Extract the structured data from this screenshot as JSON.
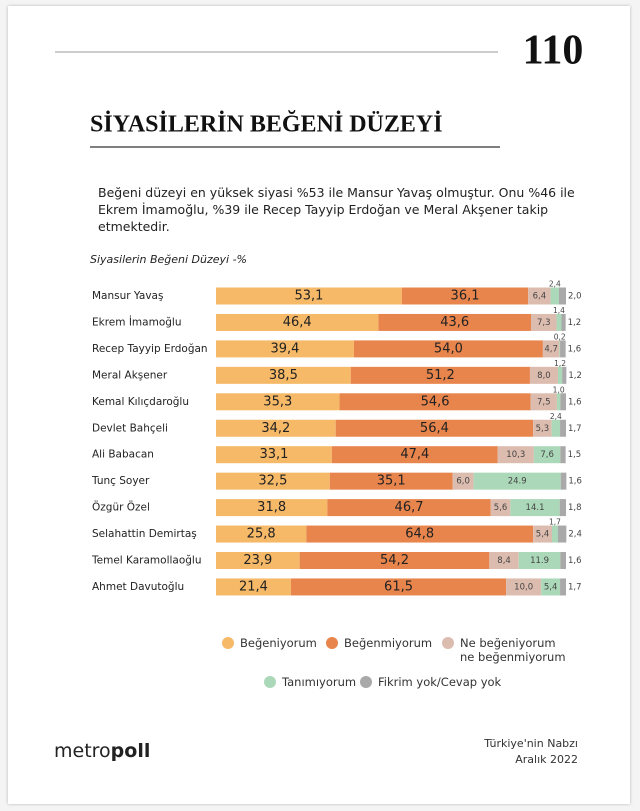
{
  "page_number": "110",
  "header": {
    "title": "SİYASİLERİN BEĞENİ DÜZEYİ"
  },
  "summary": "Beğeni düzeyi en yüksek siyasi %53 ile Mansur Yavaş olmuştur. Onu %46 ile Ekrem İmamoğlu, %39 ile Recep Tayyip Erdoğan ve Meral Akşener takip etmektedir.",
  "chart_data": {
    "type": "stacked-barh",
    "title": "Siyasilerin Beğeni Düzeyi -%",
    "categories": [
      "Mansur Yavaş",
      "Ekrem İmamoğlu",
      "Recep Tayyip Erdoğan",
      "Meral Akşener",
      "Kemal Kılıçdaroğlu",
      "Devlet Bahçeli",
      "Ali Babacan",
      "Tunç Soyer",
      "Özgür Özel",
      "Selahattin Demirtaş",
      "Temel Karamollaoğlu",
      "Ahmet Davutoğlu"
    ],
    "xlim": [
      0,
      100
    ],
    "series": [
      {
        "name": "Beğeniyorum",
        "color": "#f6b968",
        "values": [
          53.1,
          46.4,
          39.4,
          38.5,
          35.3,
          34.2,
          33.1,
          32.5,
          31.8,
          25.8,
          23.9,
          21.4
        ],
        "value_labels": [
          "53,1",
          "46,4",
          "39,4",
          "38,5",
          "35,3",
          "34,2",
          "33,1",
          "32,5",
          "31,8",
          "25,8",
          "23,9",
          "21,4"
        ]
      },
      {
        "name": "Beğenmiyorum",
        "color": "#e8854d",
        "values": [
          36.1,
          43.6,
          54.0,
          51.2,
          54.6,
          56.4,
          47.4,
          35.1,
          46.7,
          64.8,
          54.2,
          61.5
        ],
        "value_labels": [
          "36,1",
          "43,6",
          "54,0",
          "51,2",
          "54,6",
          "56,4",
          "47,4",
          "35,1",
          "46,7",
          "64,8",
          "54,2",
          "61,5"
        ]
      },
      {
        "name": "Ne beğeniyorum ne beğenmiyorum",
        "color": "#dcbcae",
        "values": [
          6.4,
          7.3,
          4.7,
          8.0,
          7.5,
          5.3,
          10.3,
          6.0,
          5.6,
          5.4,
          8.4,
          10.0
        ],
        "value_labels": [
          "6,4",
          "7,3",
          "4,7",
          "8,0",
          "7,5",
          "5,3",
          "10,3",
          "6,0",
          "5,6",
          "5,4",
          "8,4",
          "10,0"
        ]
      },
      {
        "name": "Tanımıyorum",
        "color": "#abd8b8",
        "values": [
          2.4,
          1.4,
          0.2,
          1.2,
          1.0,
          2.4,
          7.6,
          24.9,
          14.1,
          1.7,
          11.9,
          5.4
        ],
        "value_labels": [
          "2,4",
          "1,4",
          "0,2",
          "1,2",
          "1,0",
          "2,4",
          "7,6",
          "24.9",
          "14.1",
          "1,7",
          "11.9",
          "5,4"
        ]
      },
      {
        "name": "Fikrim yok/Cevap yok",
        "color": "#a9a9a9",
        "values": [
          2.0,
          1.2,
          1.6,
          1.2,
          1.6,
          1.7,
          1.5,
          1.6,
          1.8,
          2.4,
          1.6,
          1.7
        ],
        "value_labels": [
          "2,0",
          "1,2",
          "1,6",
          "1,2",
          "1,6",
          "1,7",
          "1,5",
          "1,6",
          "1,8",
          "2,4",
          "1,6",
          "1,7"
        ]
      }
    ]
  },
  "footer": {
    "brand_light": "metro",
    "brand_bold": "poll",
    "source": "Türkiye'nin Nabzı",
    "date": "Aralık 2022"
  }
}
